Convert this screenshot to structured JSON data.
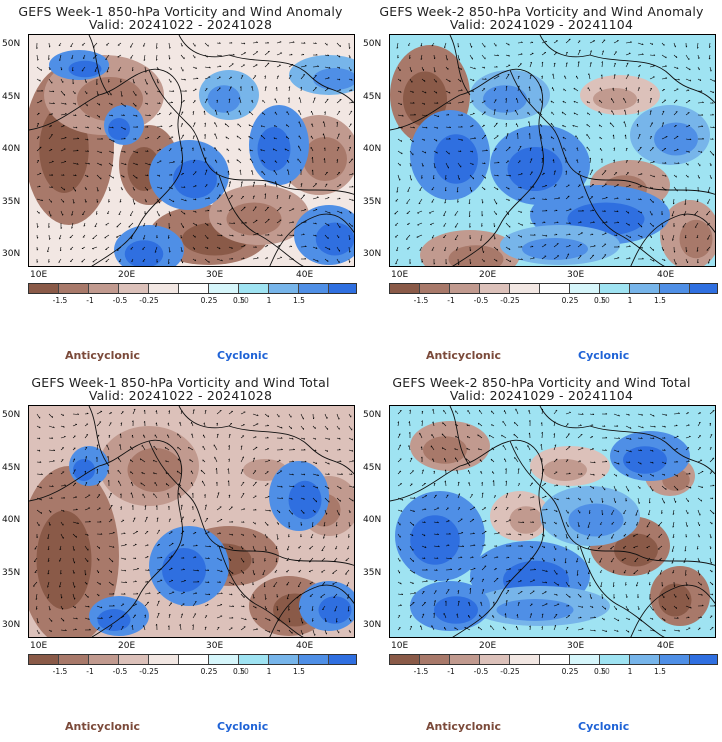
{
  "colors": {
    "anticyclonic": "#7b4a3a",
    "cyclonic": "#1f63d6",
    "scale": [
      "#8a5a48",
      "#a8796a",
      "#c19a8f",
      "#dcc1ba",
      "#f2e7e3",
      "#ffffff",
      "#d6f6fb",
      "#9fe3f2",
      "#77b5ea",
      "#4f8fe6",
      "#2f6fe0"
    ]
  },
  "lat_labels": [
    "50N",
    "45N",
    "40N",
    "35N",
    "30N"
  ],
  "lon_labels": [
    "10E",
    "20E",
    "30E",
    "40E"
  ],
  "colorbar_ticks": [
    "-1.5",
    "-1",
    "-0.5",
    "-0.25",
    "0.25",
    "0.5",
    "1",
    "1.5"
  ],
  "scale_multiplier": "10",
  "legend": {
    "anticyclonic": "Anticyclonic",
    "cyclonic": "Cyclonic"
  },
  "panels": [
    {
      "title": "GEFS Week-1 850-hPa Vorticity and Wind Anomaly",
      "valid": "Valid: 20241022 - 20241028"
    },
    {
      "title": "GEFS Week-2 850-hPa Vorticity and Wind Anomaly",
      "valid": "Valid: 20241029 - 20241104"
    },
    {
      "title": "GEFS Week-1 850-hPa Vorticity and Wind Total",
      "valid": "Valid: 20241022 - 20241028"
    },
    {
      "title": "GEFS Week-2 850-hPa Vorticity and Wind Total",
      "valid": "Valid: 20241029 - 20241104"
    }
  ]
}
